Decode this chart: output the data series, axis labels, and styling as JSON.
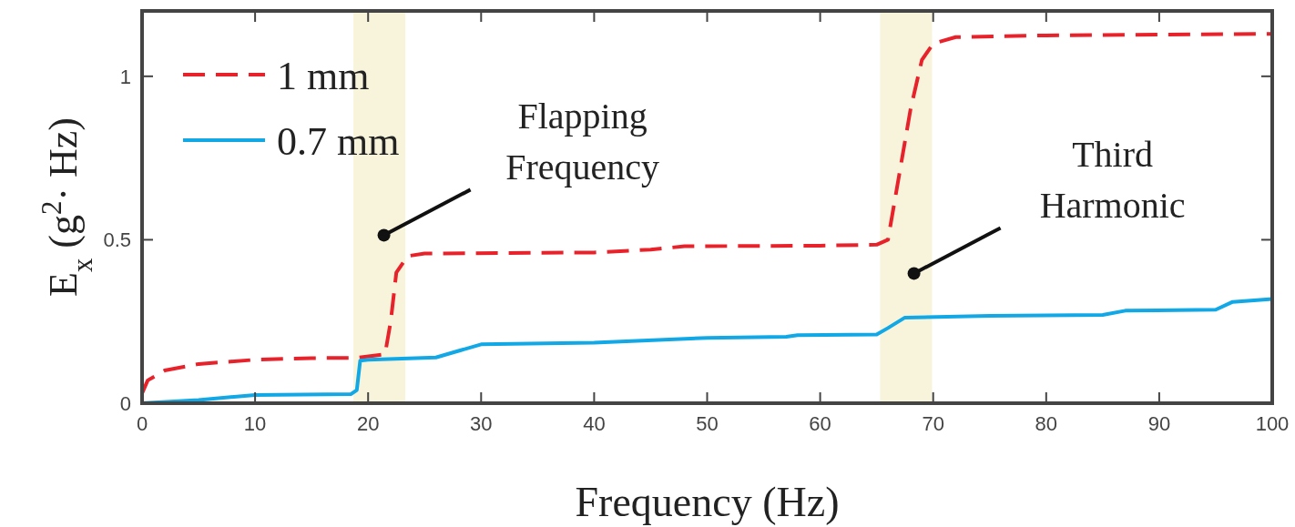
{
  "chart_data": {
    "type": "line",
    "xlabel": "Frequency (Hz)",
    "ylabel": "E$_{x}$ (g$^{2}$· Hz)",
    "xlim": [
      0,
      100
    ],
    "ylim": [
      0,
      1.2
    ],
    "xticks": [
      0,
      10,
      20,
      30,
      40,
      50,
      60,
      70,
      80,
      90,
      100
    ],
    "yticks": [
      0,
      0.5,
      1
    ],
    "grid": false,
    "legend": "top left",
    "series": [
      {
        "name": "1 mm",
        "color": "#e8222b",
        "line_style": "dashed",
        "x": [
          0,
          0.5,
          2,
          5,
          10,
          15,
          19,
          21.5,
          22,
          22.5,
          23.5,
          25,
          40,
          45,
          48,
          60,
          65,
          66,
          67,
          68,
          69,
          70,
          72,
          80,
          100
        ],
        "values": [
          0.03,
          0.07,
          0.1,
          0.12,
          0.133,
          0.138,
          0.139,
          0.15,
          0.25,
          0.4,
          0.45,
          0.458,
          0.461,
          0.47,
          0.48,
          0.482,
          0.485,
          0.5,
          0.7,
          0.9,
          1.05,
          1.1,
          1.12,
          1.125,
          1.13
        ]
      },
      {
        "name": "0.7 mm",
        "color": "#12a8e6",
        "line_style": "solid",
        "x": [
          0,
          5,
          10,
          18.5,
          19,
          19.3,
          20,
          26,
          28,
          30,
          40,
          50,
          57,
          58,
          65,
          66,
          67.5,
          75,
          85,
          87,
          95,
          96.5,
          100
        ],
        "values": [
          0,
          0.01,
          0.025,
          0.028,
          0.04,
          0.13,
          0.133,
          0.14,
          0.16,
          0.18,
          0.185,
          0.2,
          0.203,
          0.208,
          0.21,
          0.23,
          0.262,
          0.267,
          0.27,
          0.283,
          0.286,
          0.31,
          0.319
        ]
      }
    ],
    "bands": [
      {
        "axis": "x",
        "from": 18.7,
        "to": 23.3,
        "color": "#f8f4dc"
      },
      {
        "axis": "x",
        "from": 65.3,
        "to": 69.9,
        "color": "#f8f4dc"
      }
    ],
    "annotations": [
      {
        "text": "Flapping Frequency",
        "x": 21.4,
        "y": 0.514
      },
      {
        "text": "Third Harmonic",
        "x": 68.3,
        "y": 0.397
      }
    ]
  }
}
